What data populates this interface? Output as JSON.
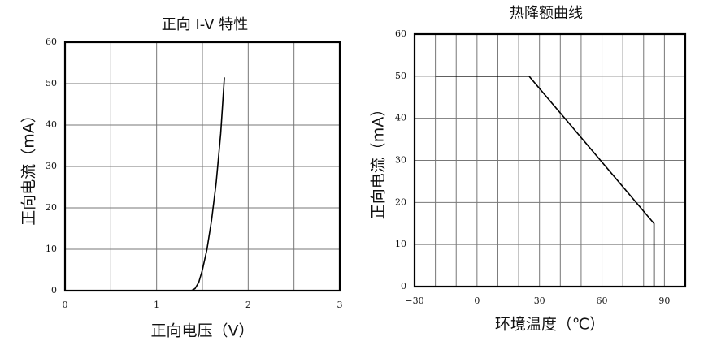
{
  "chart_data": [
    {
      "type": "line",
      "title": "正向 I-V 特性",
      "x_label": "正向电压（V）",
      "y_label": "正向电流（mA）",
      "x": [
        1.38,
        1.42,
        1.46,
        1.5,
        1.55,
        1.6,
        1.65,
        1.7,
        1.74
      ],
      "series": [
        {
          "color": "#000000",
          "values": [
            0,
            0.5,
            2,
            5,
            10,
            17,
            26,
            38,
            51.5
          ]
        }
      ],
      "xlim": [
        0,
        3
      ],
      "xticks": [
        0,
        1,
        2,
        3
      ],
      "x_minor_ticks": [
        0.5,
        1.5,
        2.5
      ],
      "ylim": [
        0,
        60
      ],
      "yticks": [
        0,
        10,
        20,
        30,
        40,
        50,
        60
      ],
      "grid": true
    },
    {
      "type": "line",
      "title": "热降额曲线",
      "x_label": "环境温度（℃）",
      "y_label": "正向电流（mA）",
      "x": [
        -20,
        25,
        85,
        85
      ],
      "series": [
        {
          "color": "#000000",
          "values": [
            50,
            50,
            15,
            0
          ]
        }
      ],
      "xlim": [
        -30,
        100
      ],
      "xticks": [
        {
          "value": -30,
          "label": "−30"
        },
        0,
        30,
        60,
        90
      ],
      "x_minor_ticks": [
        -20,
        -10,
        10,
        20,
        40,
        50,
        70,
        80
      ],
      "ylim": [
        0,
        60
      ],
      "yticks": [
        0,
        10,
        20,
        30,
        40,
        50,
        60
      ],
      "grid": true
    }
  ]
}
